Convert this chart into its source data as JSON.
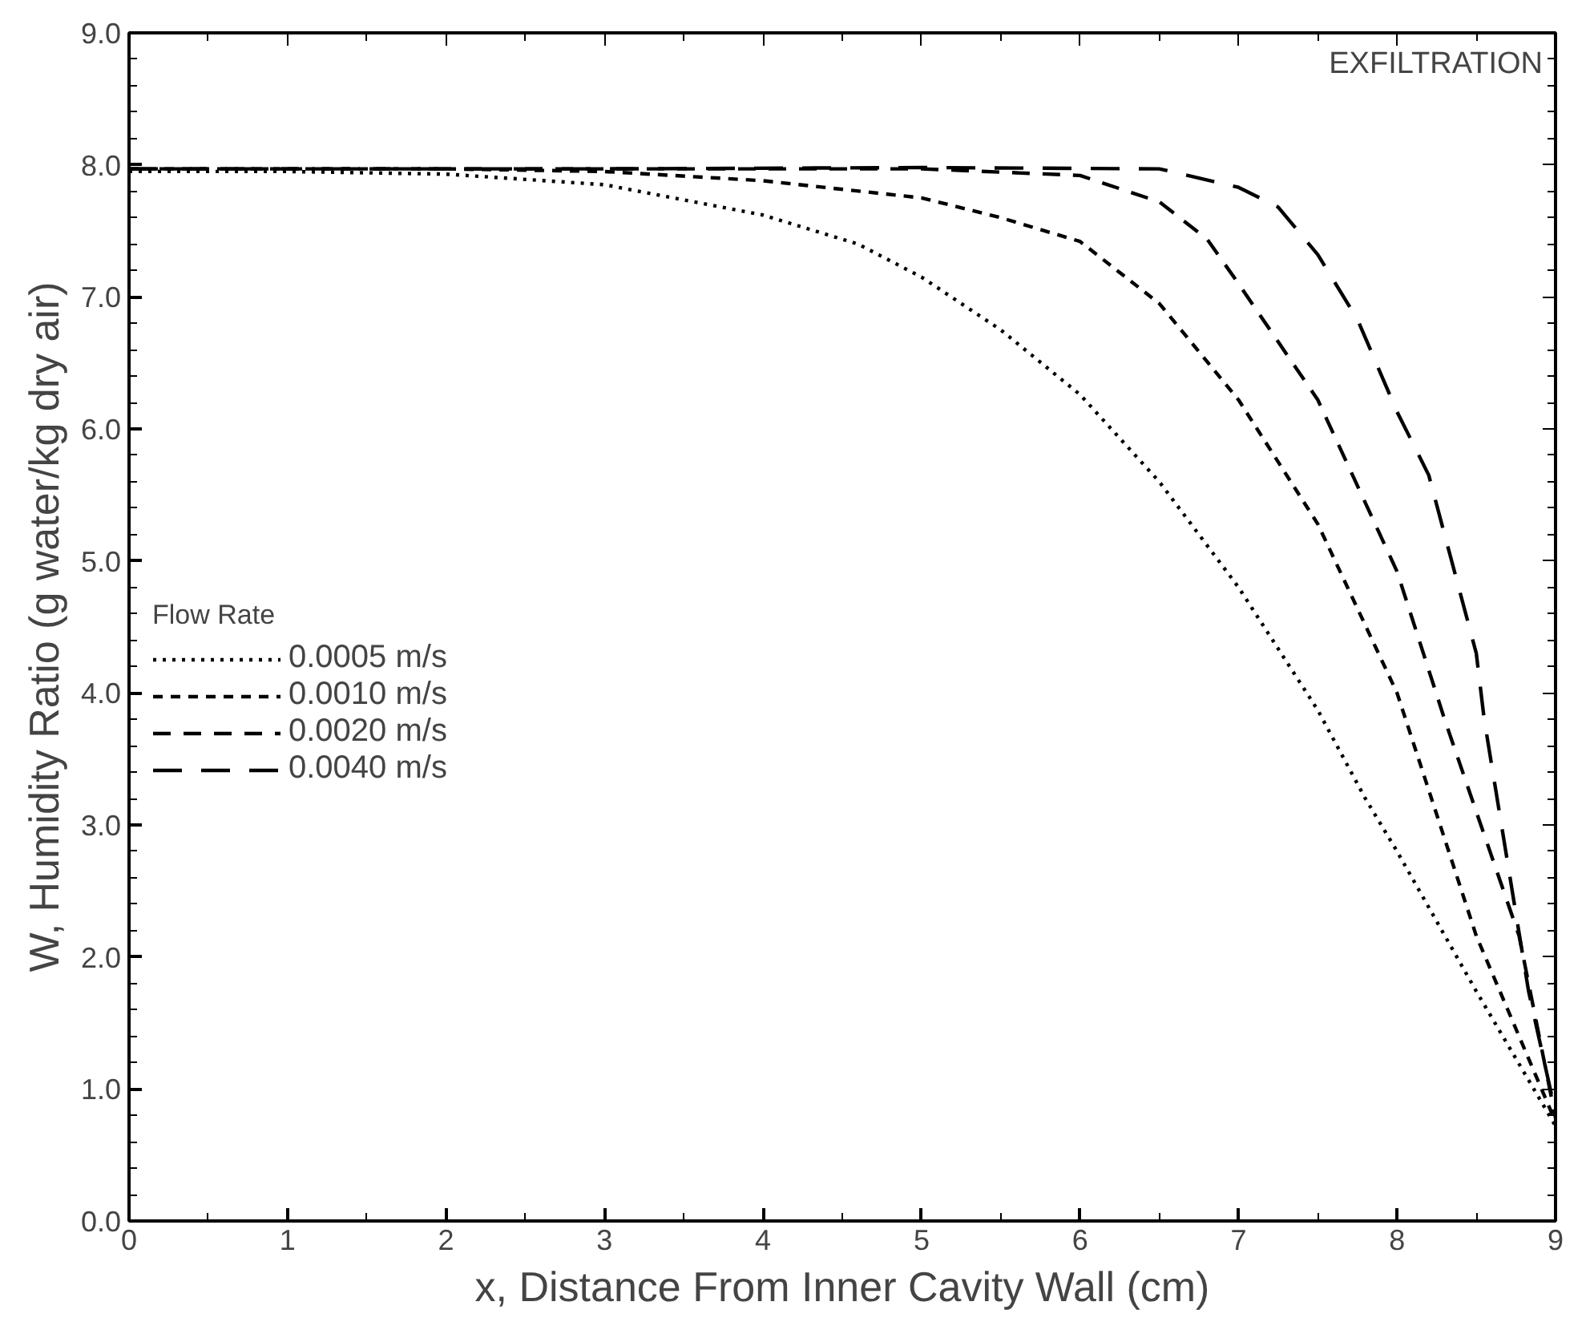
{
  "chart_data": {
    "type": "line",
    "xlabel": "x, Distance From Inner Cavity Wall (cm)",
    "ylabel": "W, Humidity Ratio (g water/kg dry air)",
    "legend_title": "Flow Rate",
    "legend": "left",
    "grid": false,
    "marker": "none",
    "annotations": [
      "EXFILTRATION"
    ],
    "xlim": [
      0,
      9
    ],
    "xticks": [
      0,
      1,
      2,
      3,
      4,
      5,
      6,
      7,
      8,
      9
    ],
    "ylim": [
      0,
      9
    ],
    "yticks": [
      {
        "value": 0,
        "label": "0.0"
      },
      {
        "value": 1,
        "label": "1.0"
      },
      {
        "value": 2,
        "label": "2.0"
      },
      {
        "value": 3,
        "label": "3.0"
      },
      {
        "value": 4,
        "label": "4.0"
      },
      {
        "value": 5,
        "label": "5.0"
      },
      {
        "value": 6,
        "label": "6.0"
      },
      {
        "value": 7,
        "label": "7.0"
      },
      {
        "value": 8,
        "label": "8.0"
      },
      {
        "value": 9,
        "label": "9.0"
      }
    ],
    "series": [
      {
        "name": "0.0005 m/s",
        "color": "#000000",
        "line_style": "dotted",
        "x": [
          0,
          1,
          2,
          3,
          4,
          4.6,
          5,
          5.5,
          6,
          6.5,
          7,
          7.5,
          7.8,
          8,
          8.5,
          9
        ],
        "values": [
          7.95,
          7.95,
          7.93,
          7.85,
          7.62,
          7.4,
          7.15,
          6.75,
          6.26,
          5.6,
          4.8,
          3.87,
          3.2,
          2.8,
          1.74,
          0.72
        ]
      },
      {
        "name": "0.0010 m/s",
        "color": "#000000",
        "line_style": "dashed",
        "x": [
          0,
          2,
          3,
          4,
          5,
          5.5,
          6,
          6.5,
          7,
          7.5,
          8,
          8.5,
          9
        ],
        "values": [
          7.97,
          7.97,
          7.95,
          7.88,
          7.75,
          7.6,
          7.42,
          6.95,
          6.22,
          5.28,
          4.0,
          2.16,
          0.75
        ]
      },
      {
        "name": "0.0020 m/s",
        "color": "#000000",
        "line_style": "dashed",
        "x": [
          0,
          3,
          5,
          6,
          6.5,
          6.8,
          7,
          7.5,
          8,
          8.3,
          8.5,
          8.77,
          9
        ],
        "values": [
          7.97,
          7.97,
          7.97,
          7.92,
          7.72,
          7.44,
          7.1,
          6.22,
          4.92,
          3.8,
          3.1,
          2.16,
          0.78
        ]
      },
      {
        "name": "0.0040 m/s",
        "color": "#000000",
        "line_style": "dashed",
        "x": [
          0,
          3,
          5,
          6.5,
          7,
          7.25,
          7.5,
          7.75,
          8,
          8.2,
          8.5,
          8.55,
          8.83,
          9
        ],
        "values": [
          7.97,
          7.97,
          7.98,
          7.97,
          7.83,
          7.68,
          7.32,
          6.83,
          6.13,
          5.65,
          4.3,
          3.8,
          1.74,
          0.82
        ]
      }
    ]
  }
}
